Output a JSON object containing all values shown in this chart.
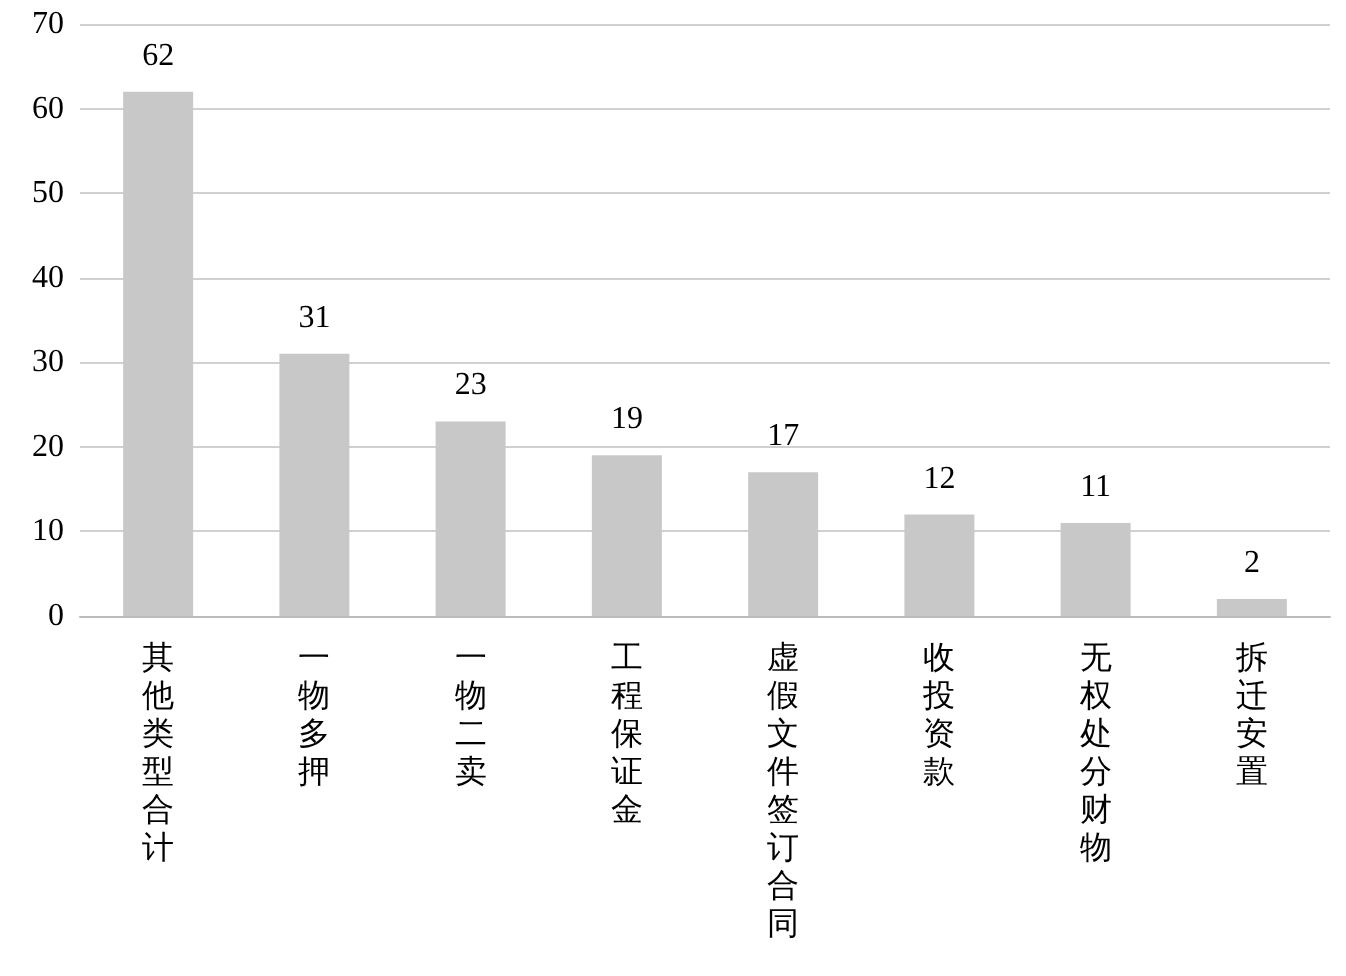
{
  "chart_data": {
    "type": "bar",
    "categories": [
      "其他类型合计",
      "一物多押",
      "一物二卖",
      "工程保证金",
      "虚假文件签订合同",
      "收投资款",
      "无权处分财物",
      "拆迁安置"
    ],
    "values": [
      62,
      31,
      23,
      19,
      17,
      12,
      11,
      2
    ],
    "color": "#c8c8c8",
    "ylim": [
      0,
      70
    ],
    "yticks": [
      0,
      10,
      20,
      30,
      40,
      50,
      60,
      70
    ],
    "grid": "y",
    "data_labels": true
  }
}
